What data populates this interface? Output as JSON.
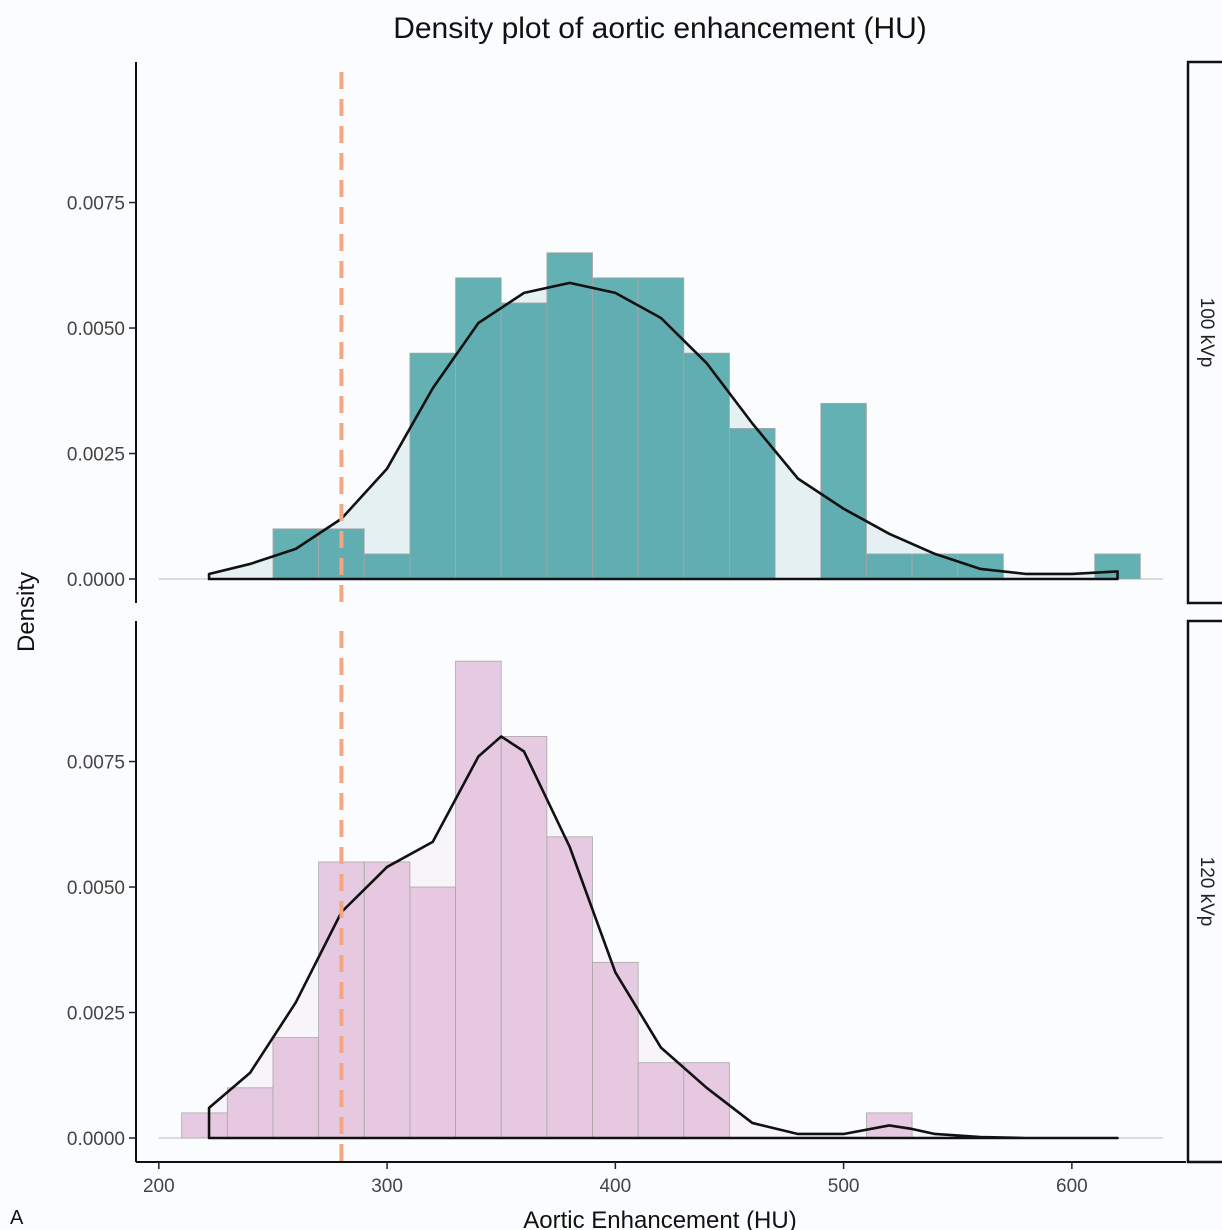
{
  "chart_data": {
    "type": "histogram-density",
    "title": "Density plot of aortic enhancement (HU)",
    "xlabel": "Aortic Enhancement (HU)",
    "ylabel": "Density",
    "panel_label": "A",
    "xlim": [
      190,
      650
    ],
    "x_ticks": [
      200,
      300,
      400,
      500,
      600
    ],
    "ylim": [
      0,
      0.0103
    ],
    "y_ticks": [
      0,
      0.0025,
      0.005,
      0.0075
    ],
    "y_tick_labels": [
      "0.0000",
      "0.0025",
      "0.0050",
      "0.0075"
    ],
    "bin_width": 20,
    "reference_line": {
      "x": 280,
      "color": "#f4a582",
      "style": "dashed"
    },
    "grid": false,
    "panels": [
      {
        "strip_label": "100 kVp",
        "fill_color": "#3e9ea0",
        "bins": [
          {
            "x_start": 250,
            "x_end": 270,
            "density": 0.001
          },
          {
            "x_start": 270,
            "x_end": 290,
            "density": 0.001
          },
          {
            "x_start": 290,
            "x_end": 310,
            "density": 0.0005
          },
          {
            "x_start": 310,
            "x_end": 330,
            "density": 0.0045
          },
          {
            "x_start": 330,
            "x_end": 350,
            "density": 0.006
          },
          {
            "x_start": 350,
            "x_end": 370,
            "density": 0.0055
          },
          {
            "x_start": 370,
            "x_end": 390,
            "density": 0.0065
          },
          {
            "x_start": 390,
            "x_end": 410,
            "density": 0.006
          },
          {
            "x_start": 410,
            "x_end": 430,
            "density": 0.006
          },
          {
            "x_start": 430,
            "x_end": 450,
            "density": 0.0045
          },
          {
            "x_start": 450,
            "x_end": 470,
            "density": 0.003
          },
          {
            "x_start": 470,
            "x_end": 490,
            "density": 0.0
          },
          {
            "x_start": 490,
            "x_end": 510,
            "density": 0.0035
          },
          {
            "x_start": 510,
            "x_end": 530,
            "density": 0.0005
          },
          {
            "x_start": 530,
            "x_end": 550,
            "density": 0.0005
          },
          {
            "x_start": 550,
            "x_end": 570,
            "density": 0.0005
          },
          {
            "x_start": 610,
            "x_end": 630,
            "density": 0.0005
          }
        ],
        "density_curve": {
          "x": [
            222,
            240,
            260,
            280,
            300,
            320,
            340,
            360,
            380,
            400,
            420,
            440,
            460,
            480,
            500,
            520,
            540,
            560,
            580,
            600,
            620
          ],
          "y": [
            0.0001,
            0.0003,
            0.0006,
            0.0012,
            0.0022,
            0.0038,
            0.0051,
            0.0057,
            0.0059,
            0.0057,
            0.0052,
            0.0043,
            0.0031,
            0.002,
            0.0014,
            0.0009,
            0.0005,
            0.0002,
            0.0001,
            0.0001,
            0.00015
          ]
        }
      },
      {
        "strip_label": "120 kVp",
        "fill_color": "#e1bddb",
        "bins": [
          {
            "x_start": 210,
            "x_end": 230,
            "density": 0.0005
          },
          {
            "x_start": 230,
            "x_end": 250,
            "density": 0.001
          },
          {
            "x_start": 250,
            "x_end": 270,
            "density": 0.002
          },
          {
            "x_start": 270,
            "x_end": 290,
            "density": 0.0055
          },
          {
            "x_start": 290,
            "x_end": 310,
            "density": 0.0055
          },
          {
            "x_start": 310,
            "x_end": 330,
            "density": 0.005
          },
          {
            "x_start": 330,
            "x_end": 350,
            "density": 0.0095
          },
          {
            "x_start": 350,
            "x_end": 370,
            "density": 0.008
          },
          {
            "x_start": 370,
            "x_end": 390,
            "density": 0.006
          },
          {
            "x_start": 390,
            "x_end": 410,
            "density": 0.0035
          },
          {
            "x_start": 410,
            "x_end": 430,
            "density": 0.0015
          },
          {
            "x_start": 430,
            "x_end": 450,
            "density": 0.0015
          },
          {
            "x_start": 510,
            "x_end": 530,
            "density": 0.0005
          }
        ],
        "density_curve": {
          "x": [
            222,
            240,
            260,
            280,
            300,
            320,
            340,
            350,
            360,
            380,
            400,
            420,
            440,
            460,
            480,
            500,
            520,
            530,
            540,
            560,
            580,
            600,
            620
          ],
          "y": [
            0.0006,
            0.0013,
            0.0027,
            0.0045,
            0.0054,
            0.0059,
            0.0076,
            0.008,
            0.0077,
            0.0058,
            0.0033,
            0.0018,
            0.001,
            0.0003,
            8e-05,
            8e-05,
            0.00025,
            0.00018,
            8e-05,
            2e-05,
            0.0,
            0.0,
            0.0
          ]
        }
      }
    ]
  }
}
